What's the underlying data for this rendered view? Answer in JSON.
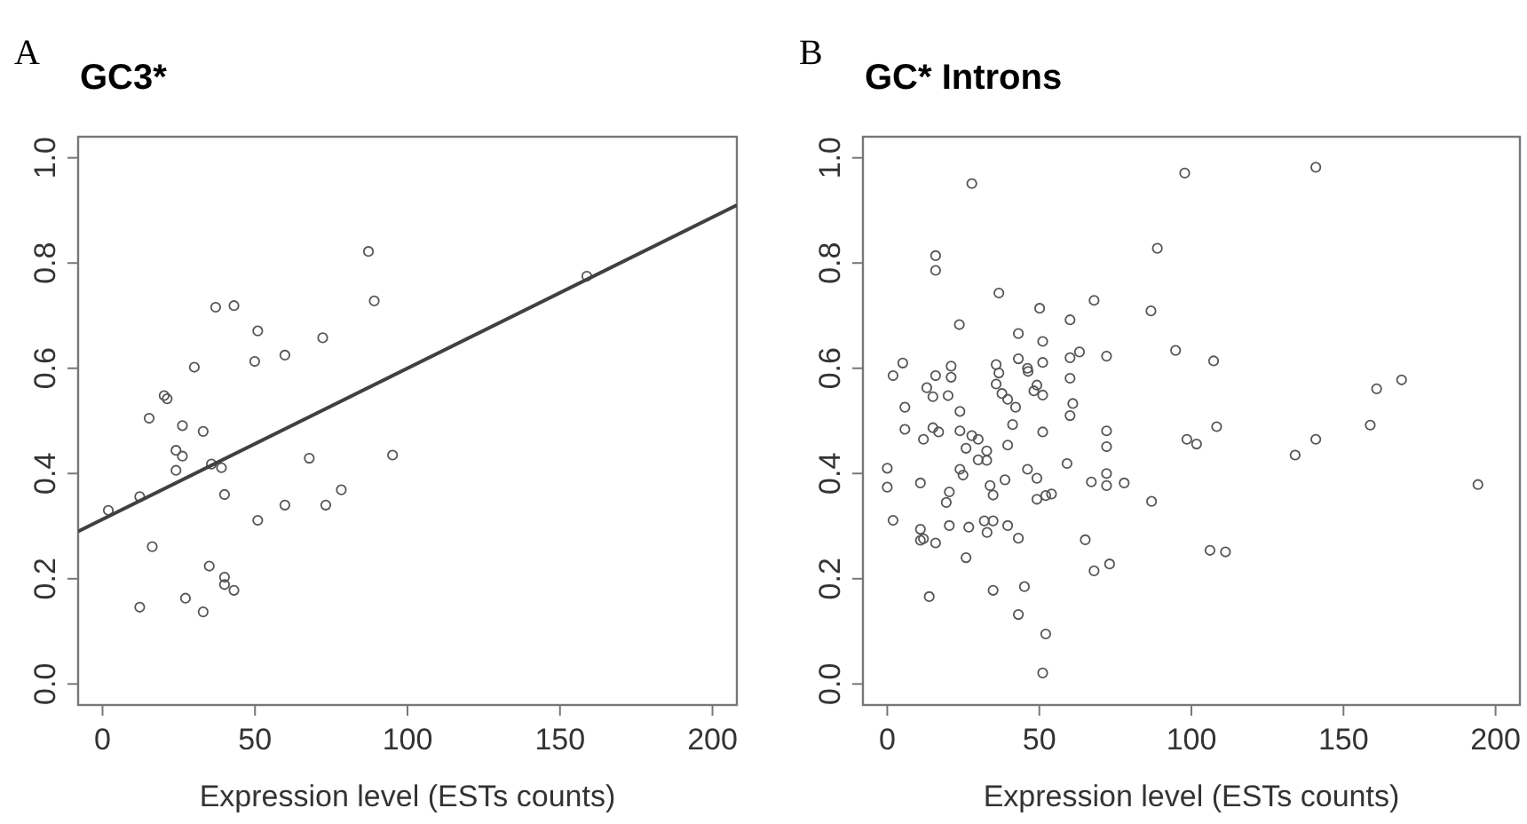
{
  "chart_data": [
    {
      "type": "scatter",
      "title": "GC3*",
      "annotations": [
        "A"
      ],
      "xlabel": "Expression level (ESTs counts)",
      "grid": false,
      "xlim": [
        -8,
        208
      ],
      "ylim": [
        -0.04,
        1.04
      ],
      "xticks": [
        0,
        50,
        100,
        150,
        200
      ],
      "yticks": [
        {
          "value": 0,
          "label": "0.0"
        },
        {
          "value": 0.2,
          "label": "0.2"
        },
        {
          "value": 0.4,
          "label": "0.4"
        },
        {
          "value": 0.6,
          "label": "0.6"
        },
        {
          "value": 0.8,
          "label": "0.8"
        },
        {
          "value": 1,
          "label": "1.0"
        }
      ],
      "series": [
        {
          "marker": "circle",
          "color": "#555555",
          "x": [
            1.9,
            12.2,
            12.2,
            15.3,
            16.3,
            20.2,
            21.2,
            24.1,
            24.1,
            26.2,
            26.2,
            27.2,
            30.1,
            33,
            33,
            35,
            35.7,
            37.1,
            39,
            40,
            40,
            40,
            43.1,
            43.1,
            49.9,
            50.9,
            50.9,
            59.8,
            59.8,
            67.8,
            72.2,
            73.2,
            78.3,
            87.2,
            89.1,
            95.1,
            158.8
          ],
          "values": [
            0.33,
            0.356,
            0.146,
            0.505,
            0.261,
            0.548,
            0.542,
            0.444,
            0.406,
            0.491,
            0.433,
            0.163,
            0.602,
            0.48,
            0.137,
            0.224,
            0.418,
            0.716,
            0.411,
            0.36,
            0.203,
            0.189,
            0.719,
            0.178,
            0.613,
            0.671,
            0.311,
            0.625,
            0.34,
            0.429,
            0.658,
            0.34,
            0.369,
            0.822,
            0.728,
            0.435,
            0.775
          ]
        },
        {
          "type": "line",
          "color": "#404040",
          "x": [
            -8,
            208
          ],
          "values": [
            0.29,
            0.91
          ]
        }
      ]
    },
    {
      "type": "scatter",
      "title": "GC* Introns",
      "annotations": [
        "B"
      ],
      "xlabel": "Expression level (ESTs counts)",
      "grid": false,
      "xlim": [
        -8,
        208
      ],
      "ylim": [
        -0.04,
        1.04
      ],
      "xticks": [
        0,
        50,
        100,
        150,
        200
      ],
      "yticks": [
        {
          "value": 0,
          "label": "0.0"
        },
        {
          "value": 0.2,
          "label": "0.2"
        },
        {
          "value": 0.4,
          "label": "0.4"
        },
        {
          "value": 0.6,
          "label": "0.6"
        },
        {
          "value": 0.8,
          "label": "0.8"
        },
        {
          "value": 1,
          "label": "1.0"
        }
      ],
      "series": [
        {
          "marker": "circle",
          "color": "#555555",
          "x": [
            27.8,
            97.8,
            140.9,
            15.9,
            15.9,
            88.8,
            36.7,
            68,
            50.1,
            23.7,
            60.1,
            86.7,
            43.1,
            51.1,
            94.8,
            63.2,
            60.1,
            72.1,
            107.3,
            43.1,
            51.1,
            46.1,
            46.3,
            35.8,
            36.7,
            21,
            21,
            15.9,
            5.1,
            1.9,
            60.1,
            49.2,
            35.8,
            13,
            48.2,
            51.1,
            37.7,
            39.6,
            15,
            20,
            160.9,
            169.1,
            5.8,
            42.2,
            61,
            23.9,
            60.1,
            41.2,
            158.8,
            108.3,
            5.8,
            15,
            16.9,
            23.9,
            51.1,
            72.1,
            98.5,
            101.7,
            140.9,
            11.9,
            27.8,
            29.9,
            39.6,
            72.1,
            25.9,
            32.7,
            134.1,
            0,
            0,
            1.9,
            10.9,
            10.9,
            10.9,
            11.9,
            15.9,
            13.8,
            19.4,
            20.4,
            20.4,
            23.9,
            24.9,
            25.9,
            26.8,
            29.9,
            32.7,
            33.8,
            34.8,
            31.9,
            32.8,
            34.8,
            34.8,
            38.7,
            39.6,
            43.1,
            46.1,
            49.2,
            49.2,
            52.1,
            54,
            59.1,
            43.1,
            45.1,
            52.1,
            51.1,
            65.1,
            67.1,
            68,
            72.1,
            72.1,
            73.1,
            77.9,
            86.9,
            106.1,
            111.2,
            194.2
          ],
          "values": [
            0.951,
            0.971,
            0.982,
            0.814,
            0.786,
            0.828,
            0.743,
            0.729,
            0.714,
            0.683,
            0.692,
            0.709,
            0.666,
            0.651,
            0.634,
            0.631,
            0.62,
            0.623,
            0.614,
            0.618,
            0.611,
            0.6,
            0.594,
            0.607,
            0.591,
            0.604,
            0.583,
            0.586,
            0.61,
            0.586,
            0.581,
            0.568,
            0.57,
            0.563,
            0.557,
            0.549,
            0.552,
            0.541,
            0.546,
            0.548,
            0.561,
            0.578,
            0.526,
            0.526,
            0.533,
            0.518,
            0.51,
            0.493,
            0.492,
            0.489,
            0.484,
            0.487,
            0.479,
            0.481,
            0.479,
            0.481,
            0.465,
            0.456,
            0.465,
            0.465,
            0.472,
            0.465,
            0.454,
            0.451,
            0.448,
            0.443,
            0.435,
            0.41,
            0.374,
            0.311,
            0.382,
            0.294,
            0.273,
            0.276,
            0.268,
            0.166,
            0.345,
            0.365,
            0.301,
            0.408,
            0.397,
            0.24,
            0.298,
            0.426,
            0.425,
            0.377,
            0.359,
            0.31,
            0.288,
            0.31,
            0.178,
            0.388,
            0.301,
            0.277,
            0.408,
            0.391,
            0.351,
            0.358,
            0.361,
            0.419,
            0.132,
            0.185,
            0.095,
            0.021,
            0.274,
            0.384,
            0.215,
            0.4,
            0.377,
            0.228,
            0.382,
            0.347,
            0.254,
            0.251,
            0.379
          ]
        }
      ]
    }
  ]
}
